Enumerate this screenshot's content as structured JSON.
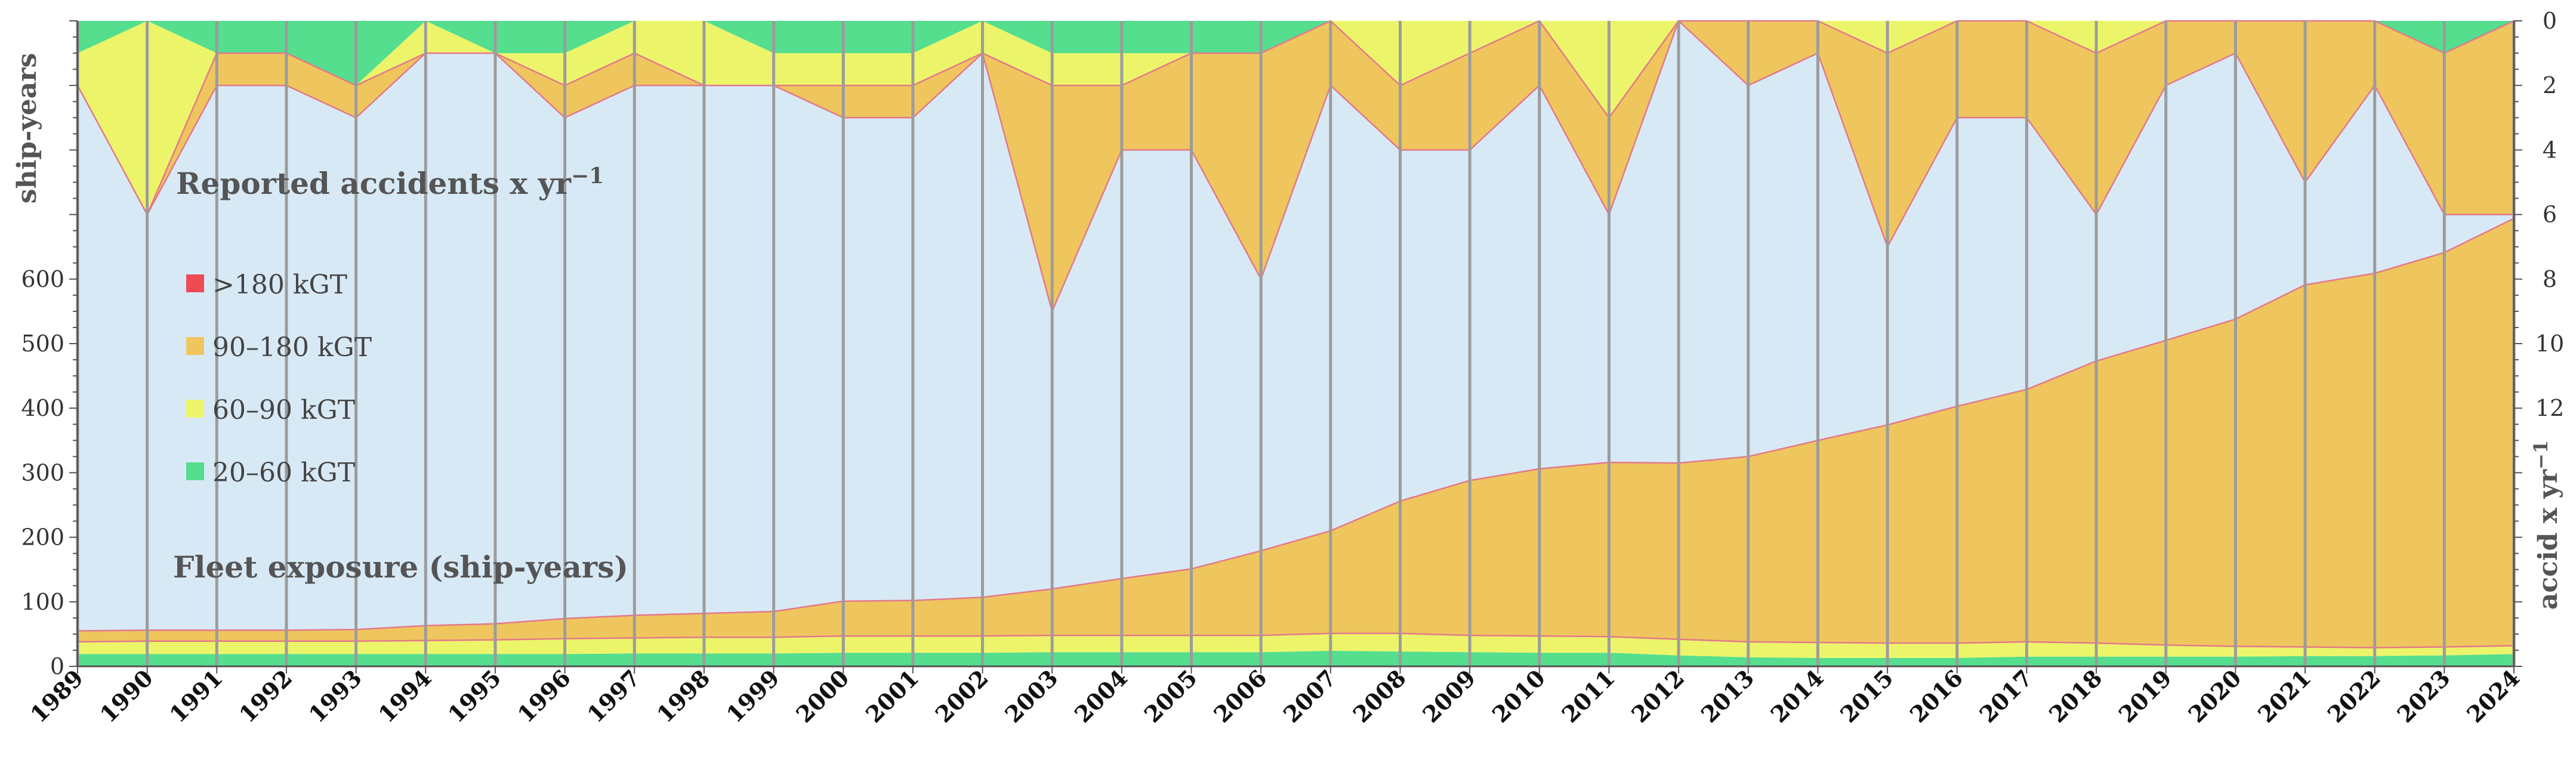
{
  "chart_data": {
    "type": "area",
    "years": [
      "1989",
      "1990",
      "1991",
      "1992",
      "1993",
      "1994",
      "1995",
      "1996",
      "1997",
      "1998",
      "1999",
      "2000",
      "2001",
      "2002",
      "2003",
      "2004",
      "2005",
      "2006",
      "2007",
      "2008",
      "2009",
      "2010",
      "2011",
      "2012",
      "2013",
      "2014",
      "2015",
      "2016",
      "2017",
      "2018",
      "2019",
      "2020",
      "2021",
      "2022",
      "2023",
      "2024"
    ],
    "left_axis": {
      "label": "ship-years",
      "ylim": [
        0,
        1000
      ],
      "ticks": [
        0,
        100,
        200,
        300,
        400,
        500,
        600
      ]
    },
    "right_axis": {
      "label": "accid x yr",
      "label_superscript": "−1",
      "ylim": [
        0,
        20
      ],
      "ticks": [
        0,
        2,
        4,
        6,
        8,
        10,
        12
      ],
      "inverted": true
    },
    "annotations": {
      "accidents_title": "Reported accidents x yr",
      "accidents_title_superscript": "−1",
      "exposure_title": "Fleet exposure (ship-years)"
    },
    "colors": {
      "background": "#D8E9F6",
      "c20_60": "#54DE8E",
      "c60_90": "#ECF56A",
      "c90_180": "#EFC65E",
      "c180": "#EE4B55",
      "divider": "#9C9C9C",
      "edge": "#E4788A"
    },
    "legend": [
      {
        "label": ">180 kGT",
        "color_key": "c180"
      },
      {
        "label": "90–180 kGT",
        "color_key": "c90_180"
      },
      {
        "label": "60–90 kGT",
        "color_key": "c60_90"
      },
      {
        "label": "20–60 kGT",
        "color_key": "c20_60"
      }
    ],
    "exposure_series": [
      {
        "name": "20–60 kGT",
        "color_key": "c20_60",
        "values": [
          19,
          19,
          19,
          19,
          19,
          19,
          19,
          19,
          20,
          20,
          20,
          21,
          21,
          21,
          22,
          22,
          22,
          22,
          24,
          23,
          22,
          21,
          21,
          17,
          14,
          13,
          13,
          13,
          15,
          15,
          15,
          15,
          16,
          16,
          17,
          19
        ]
      },
      {
        "name": "60–90 kGT",
        "color_key": "c60_90",
        "values": [
          19,
          20,
          20,
          20,
          20,
          21,
          22,
          24,
          24,
          25,
          25,
          26,
          26,
          26,
          26,
          26,
          26,
          26,
          27,
          28,
          26,
          26,
          25,
          25,
          24,
          24,
          23,
          23,
          23,
          21,
          18,
          16,
          14,
          13,
          13,
          13
        ]
      },
      {
        "name": "90–180 kGT",
        "color_key": "c90_180",
        "values": [
          17,
          17,
          17,
          17,
          18,
          23,
          25,
          31,
          35,
          37,
          40,
          54,
          55,
          60,
          72,
          88,
          103,
          131,
          159,
          205,
          240,
          259,
          270,
          273,
          287,
          313,
          338,
          367,
          391,
          437,
          472,
          507,
          561,
          580,
          611,
          662
        ]
      },
      {
        "name": ">180 kGT",
        "color_key": "c180",
        "values": [
          0,
          0,
          0,
          0,
          0,
          0,
          0,
          0,
          0,
          0,
          0,
          0,
          0,
          0,
          0,
          0,
          0,
          0,
          0,
          0,
          0,
          0,
          0,
          0,
          0,
          0,
          0,
          0,
          0,
          0,
          0,
          0,
          0,
          0,
          0,
          0
        ]
      }
    ],
    "accident_series": [
      {
        "name": "20–60 kGT",
        "color_key": "c20_60",
        "values": [
          1,
          0,
          1,
          1,
          2,
          0,
          1,
          1,
          0,
          0,
          1,
          1,
          1,
          0,
          1,
          1,
          1,
          1,
          0,
          0,
          0,
          0,
          0,
          0,
          0,
          0,
          0,
          0,
          0,
          0,
          0,
          0,
          0,
          0,
          1,
          0
        ]
      },
      {
        "name": "60–90 kGT",
        "color_key": "c60_90",
        "values": [
          1,
          6,
          0,
          0,
          0,
          1,
          0,
          1,
          1,
          2,
          1,
          1,
          1,
          1,
          1,
          1,
          0,
          0,
          0,
          2,
          1,
          0,
          3,
          0,
          0,
          0,
          1,
          0,
          0,
          1,
          0,
          0,
          0,
          0,
          0,
          0
        ]
      },
      {
        "name": "90–180 kGT",
        "color_key": "c90_180",
        "values": [
          0,
          0,
          1,
          1,
          1,
          0,
          0,
          1,
          1,
          0,
          0,
          1,
          1,
          0,
          7,
          2,
          3,
          7,
          2,
          2,
          3,
          2,
          3,
          0,
          2,
          1,
          6,
          3,
          3,
          5,
          2,
          1,
          5,
          2,
          5,
          6
        ]
      },
      {
        "name": ">180 kGT",
        "color_key": "c180",
        "values": [
          0,
          0,
          0,
          0,
          0,
          0,
          0,
          0,
          0,
          0,
          0,
          0,
          0,
          0,
          0,
          0,
          0,
          0,
          0,
          0,
          0,
          0,
          0,
          0,
          0,
          0,
          0,
          0,
          0,
          0,
          0,
          0,
          0,
          0,
          0,
          0
        ]
      }
    ]
  }
}
